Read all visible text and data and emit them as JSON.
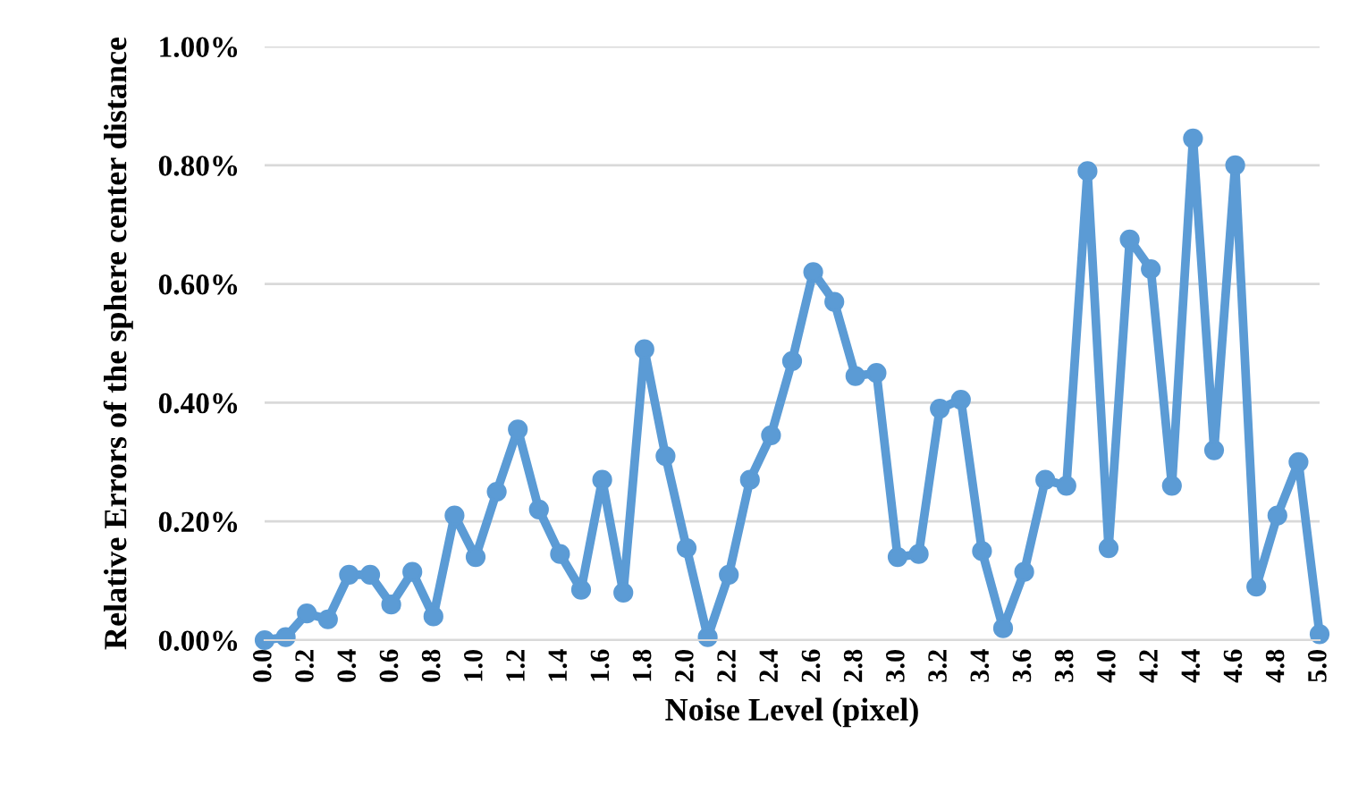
{
  "chart_data": {
    "type": "line",
    "xlabel": "Noise Level (pixel)",
    "ylabel": "Relative Errors of the sphere center distance",
    "categories": [
      "0.0",
      null,
      "0.2",
      null,
      "0.4",
      null,
      "0.6",
      null,
      "0.8",
      null,
      "1.0",
      null,
      "1.2",
      null,
      "1.4",
      null,
      "1.6",
      null,
      "1.8",
      null,
      "2.0",
      null,
      "2.2",
      null,
      "2.4",
      null,
      "2.6",
      null,
      "2.8",
      null,
      "3.0",
      null,
      "3.2",
      null,
      "3.4",
      null,
      "3.6",
      null,
      "3.8",
      null,
      "4.0",
      null,
      "4.2",
      null,
      "4.4",
      null,
      "4.6",
      null,
      "4.8",
      null,
      "5.0"
    ],
    "series": [
      {
        "color": "#5b9bd5",
        "values": [
          0.0,
          0.005,
          0.045,
          0.035,
          0.11,
          0.11,
          0.06,
          0.115,
          0.04,
          0.21,
          0.14,
          0.25,
          0.355,
          0.22,
          0.145,
          0.085,
          0.27,
          0.08,
          0.49,
          0.31,
          0.155,
          0.005,
          0.11,
          0.27,
          0.345,
          0.47,
          0.62,
          0.57,
          0.445,
          0.45,
          0.14,
          0.145,
          0.39,
          0.405,
          0.15,
          0.02,
          0.115,
          0.27,
          0.26,
          0.79,
          0.155,
          0.675,
          0.625,
          0.26,
          0.845,
          0.32,
          0.8,
          0.09,
          0.21,
          0.3,
          0.01
        ]
      }
    ],
    "ylim": [
      0,
      1.0
    ],
    "yticks": [
      {
        "value": 0,
        "label": "0.00%"
      },
      {
        "value": 0.2,
        "label": "0.20%"
      },
      {
        "value": 0.4,
        "label": "0.40%"
      },
      {
        "value": 0.6,
        "label": "0.60%"
      },
      {
        "value": 0.8,
        "label": "0.80%"
      },
      {
        "value": 1.0,
        "label": "1.00%"
      }
    ],
    "grid": "y",
    "marker": "circle",
    "line_style": "solid",
    "legend": false
  }
}
